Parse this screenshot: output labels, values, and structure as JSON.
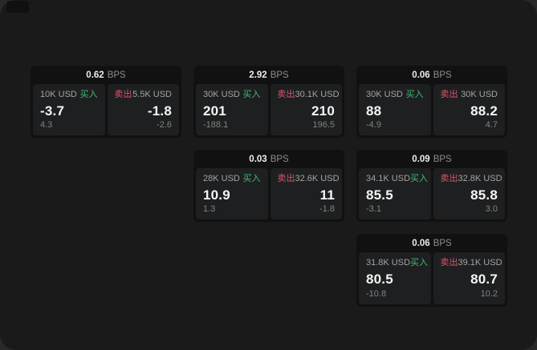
{
  "labels": {
    "buy": "买入",
    "sell": "卖出",
    "bps": "BPS"
  },
  "colors": {
    "buy_green": "#3fbc72",
    "sell_red": "#d8566a",
    "panel_bg": "#1e1f20",
    "card_bg": "#111112",
    "main_bg": "#1a1a1b"
  },
  "cards": [
    {
      "bps": "0.62",
      "grid": {
        "col": 1,
        "row": 1
      },
      "buy": {
        "size": "10K USD",
        "value": "-3.7",
        "delta": "4.3"
      },
      "sell": {
        "size": "5.5K USD",
        "value": "-1.8",
        "delta": "-2.6"
      }
    },
    {
      "bps": "2.92",
      "grid": {
        "col": 2,
        "row": 1
      },
      "buy": {
        "size": "30K USD",
        "value": "201",
        "delta": "-188.1"
      },
      "sell": {
        "size": "30.1K USD",
        "value": "210",
        "delta": "196.5"
      }
    },
    {
      "bps": "0.06",
      "grid": {
        "col": 3,
        "row": 1
      },
      "buy": {
        "size": "30K USD",
        "value": "88",
        "delta": "-4.9"
      },
      "sell": {
        "size": "30K USD",
        "value": "88.2",
        "delta": "4.7"
      }
    },
    {
      "bps": "0.03",
      "grid": {
        "col": 2,
        "row": 2
      },
      "buy": {
        "size": "28K USD",
        "value": "10.9",
        "delta": "1.3"
      },
      "sell": {
        "size": "32.6K USD",
        "value": "11",
        "delta": "-1.8"
      }
    },
    {
      "bps": "0.09",
      "grid": {
        "col": 3,
        "row": 2
      },
      "buy": {
        "size": "34.1K USD",
        "value": "85.5",
        "delta": "-3.1"
      },
      "sell": {
        "size": "32.8K USD",
        "value": "85.8",
        "delta": "3.0"
      }
    },
    {
      "bps": "0.06",
      "grid": {
        "col": 3,
        "row": 3
      },
      "buy": {
        "size": "31.8K USD",
        "value": "80.5",
        "delta": "-10.8"
      },
      "sell": {
        "size": "39.1K USD",
        "value": "80.7",
        "delta": "10.2"
      }
    }
  ]
}
